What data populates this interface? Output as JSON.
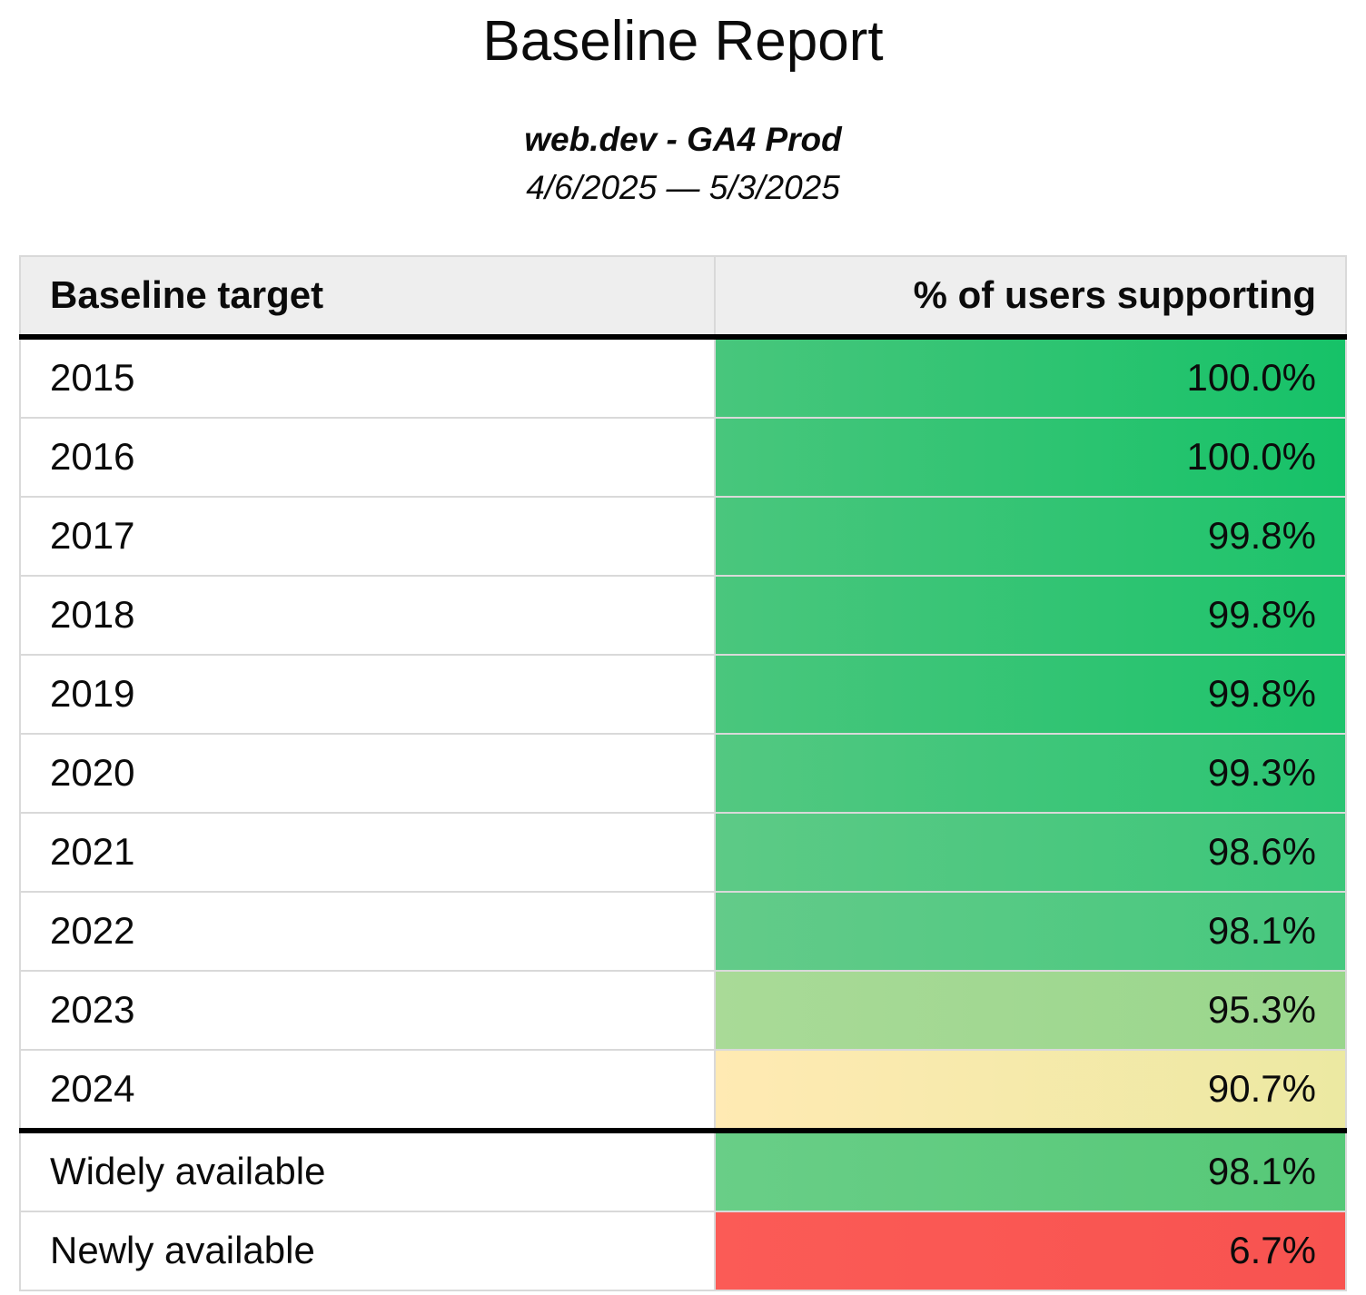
{
  "report": {
    "title": "Baseline Report",
    "property": "web.dev - GA4 Prod",
    "date_range": "4/6/2025 — 5/3/2025"
  },
  "table": {
    "header": {
      "target": "Baseline target",
      "percent": "% of users supporting"
    },
    "rows": [
      {
        "target": "2015",
        "percent": "100.0%",
        "value": 100.0,
        "color_left": "#48c67c",
        "color_right": "#16c268"
      },
      {
        "target": "2016",
        "percent": "100.0%",
        "value": 100.0,
        "color_left": "#48c67c",
        "color_right": "#16c268"
      },
      {
        "target": "2017",
        "percent": "99.8%",
        "value": 99.8,
        "color_left": "#4ac67d",
        "color_right": "#1dc36b"
      },
      {
        "target": "2018",
        "percent": "99.8%",
        "value": 99.8,
        "color_left": "#4ac67d",
        "color_right": "#1dc36b"
      },
      {
        "target": "2019",
        "percent": "99.8%",
        "value": 99.8,
        "color_left": "#4ac67d",
        "color_right": "#1dc36b"
      },
      {
        "target": "2020",
        "percent": "99.3%",
        "value": 99.3,
        "color_left": "#53c881",
        "color_right": "#2ac472"
      },
      {
        "target": "2021",
        "percent": "98.6%",
        "value": 98.6,
        "color_left": "#5dca86",
        "color_right": "#3bc679"
      },
      {
        "target": "2022",
        "percent": "98.1%",
        "value": 98.1,
        "color_left": "#63cb89",
        "color_right": "#46c87e"
      },
      {
        "target": "2023",
        "percent": "95.3%",
        "value": 95.3,
        "color_left": "#a9da97",
        "color_right": "#99d68c"
      },
      {
        "target": "2024",
        "percent": "90.7%",
        "value": 90.7,
        "color_left": "#ffeab3",
        "color_right": "#ece9a2"
      },
      {
        "target": "Widely available",
        "percent": "98.1%",
        "value": 98.1,
        "color_left": "#69ce87",
        "color_right": "#55c877"
      },
      {
        "target": "Newly available",
        "percent": "6.7%",
        "value": 6.7,
        "color_left": "#fb5b56",
        "color_right": "#f85350"
      }
    ]
  },
  "chart_data": {
    "type": "table",
    "title": "Baseline Report",
    "subtitle": "web.dev - GA4 Prod",
    "date_range": "4/6/2025 — 5/3/2025",
    "columns": [
      "Baseline target",
      "% of users supporting"
    ],
    "rows": [
      [
        "2015",
        100.0
      ],
      [
        "2016",
        100.0
      ],
      [
        "2017",
        99.8
      ],
      [
        "2018",
        99.8
      ],
      [
        "2019",
        99.8
      ],
      [
        "2020",
        99.3
      ],
      [
        "2021",
        98.6
      ],
      [
        "2022",
        98.1
      ],
      [
        "2023",
        95.3
      ],
      [
        "2024",
        90.7
      ],
      [
        "Widely available",
        98.1
      ],
      [
        "Newly available",
        6.7
      ]
    ],
    "layout_hints": {
      "value_color_scale": "red-yellow-green conditional formatting on percent column",
      "section_break_after_row": "2024"
    }
  }
}
